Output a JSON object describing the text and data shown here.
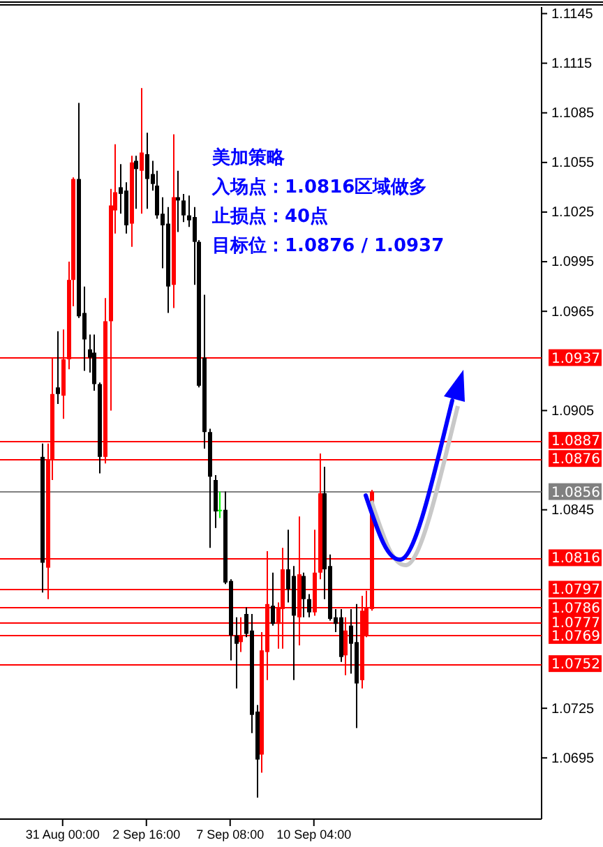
{
  "chart_data": {
    "type": "candlestick",
    "categories": [
      null,
      null,
      null,
      null,
      "31 Aug 00:00",
      null,
      null,
      null,
      null,
      null,
      null,
      null,
      null,
      null,
      null,
      null,
      null,
      null,
      null,
      null,
      "2 Sep 16:00",
      null,
      null,
      null,
      null,
      null,
      null,
      null,
      null,
      null,
      null,
      null,
      null,
      null,
      null,
      null,
      "7 Sep 08:00",
      null,
      null,
      null,
      null,
      null,
      null,
      null,
      null,
      null,
      null,
      null,
      null,
      null,
      null,
      null,
      "10 Sep 04:00",
      null,
      null,
      null,
      null,
      null,
      null,
      null,
      null,
      null,
      null,
      null,
      null,
      null,
      null,
      null,
      null,
      null,
      null,
      null,
      null,
      null,
      null,
      null,
      null,
      null,
      null,
      null,
      null,
      null,
      null,
      null,
      null,
      null,
      null,
      null,
      null,
      null,
      null,
      null,
      null,
      null,
      null,
      null
    ],
    "ohlc": [
      [
        1.0877,
        1.0885,
        1.0795,
        1.0813
      ],
      [
        1.081,
        1.0885,
        1.0791,
        1.0875
      ],
      [
        1.0875,
        1.0937,
        1.0863,
        1.0915
      ],
      [
        1.0919,
        1.0953,
        1.0909,
        1.0915
      ],
      [
        1.0914,
        1.0954,
        1.09,
        1.0936
      ],
      [
        1.0936,
        1.0995,
        1.093,
        1.0984
      ],
      [
        1.0984,
        1.1046,
        1.0968,
        1.1045
      ],
      [
        1.1045,
        1.1091,
        1.0961,
        1.0962
      ],
      [
        1.0964,
        1.098,
        1.0929,
        1.0948
      ],
      [
        1.0942,
        1.0951,
        1.0928,
        1.0937
      ],
      [
        1.094,
        1.0951,
        1.0917,
        1.0921
      ],
      [
        1.0921,
        1.0922,
        1.0867,
        1.0877
      ],
      [
        1.0877,
        1.0973,
        1.0873,
        1.0959
      ],
      [
        1.0959,
        1.1039,
        1.0905,
        1.1029
      ],
      [
        1.1026,
        1.1066,
        1.1012,
        1.1037
      ],
      [
        1.104,
        1.1054,
        1.1024,
        1.1036
      ],
      [
        1.1038,
        1.1043,
        1.1012,
        1.1017
      ],
      [
        1.1018,
        1.1059,
        1.1004,
        1.1055
      ],
      [
        1.1056,
        1.1059,
        1.1027,
        1.1051
      ],
      [
        1.105,
        1.11,
        1.1024,
        1.1061
      ],
      [
        1.106,
        1.1073,
        1.1027,
        1.1045
      ],
      [
        1.1048,
        1.1056,
        1.1038,
        1.1042
      ],
      [
        1.1041,
        1.105,
        1.1021,
        1.1023
      ],
      [
        1.1024,
        1.1034,
        1.0991,
        1.1017
      ],
      [
        1.1018,
        1.1028,
        1.0964,
        1.098
      ],
      [
        1.0981,
        1.1072,
        1.0967,
        1.1034
      ],
      [
        1.1034,
        1.105,
        1.1013,
        1.1032
      ],
      [
        1.1032,
        1.1036,
        1.1019,
        1.1023
      ],
      [
        1.1023,
        1.1035,
        1.1016,
        1.102
      ],
      [
        1.1022,
        1.1028,
        1.0981,
        1.1007
      ],
      [
        1.1007,
        1.1008,
        1.0919,
        1.092
      ],
      [
        1.0937,
        1.0975,
        1.0882,
        1.0892
      ],
      [
        1.0892,
        1.0894,
        1.0822,
        1.0865
      ],
      [
        1.0863,
        1.0866,
        1.0834,
        1.0844
      ],
      [
        1.0845,
        1.0856,
        1.084,
        1.0845
      ],
      [
        1.0845,
        1.0856,
        1.08,
        1.0801
      ],
      [
        1.0802,
        1.0803,
        1.0754,
        1.0769
      ],
      [
        1.0769,
        1.078,
        1.0737,
        1.0764
      ],
      [
        1.0765,
        1.078,
        1.0759,
        1.0769
      ],
      [
        1.0782,
        1.0786,
        1.0768,
        1.077
      ],
      [
        1.0772,
        1.0782,
        1.071,
        1.0721
      ],
      [
        1.0723,
        1.0727,
        1.0671,
        1.0694
      ],
      [
        1.0697,
        1.0771,
        1.0686,
        1.076
      ],
      [
        1.0759,
        1.082,
        1.0742,
        1.0788
      ],
      [
        1.0787,
        1.0807,
        1.0775,
        1.0776
      ],
      [
        1.0776,
        1.0789,
        1.0761,
        1.0786
      ],
      [
        1.0785,
        1.0822,
        1.0761,
        1.0809
      ],
      [
        1.0809,
        1.0833,
        1.0789,
        1.0797
      ],
      [
        1.0805,
        1.0811,
        1.0742,
        1.0781
      ],
      [
        1.078,
        1.0841,
        1.0763,
        1.0806
      ],
      [
        1.0805,
        1.0807,
        1.078,
        1.0791
      ],
      [
        1.0791,
        1.0794,
        1.078,
        1.0783
      ],
      [
        1.0783,
        1.0833,
        1.0781,
        1.0807
      ],
      [
        1.0807,
        1.0879,
        1.0803,
        1.0855
      ],
      [
        1.0855,
        1.0871,
        1.0791,
        1.0809
      ],
      [
        1.0811,
        1.0818,
        1.0778,
        1.0779
      ],
      [
        1.078,
        1.0785,
        1.0771,
        1.0776
      ],
      [
        1.078,
        1.0785,
        1.0753,
        1.0756
      ],
      [
        1.0757,
        1.078,
        1.0745,
        1.0772
      ],
      [
        1.0775,
        1.0785,
        1.0746,
        1.0764
      ],
      [
        1.0765,
        1.0788,
        1.0713,
        1.074
      ],
      [
        1.0742,
        1.0793,
        1.0737,
        1.0784
      ],
      [
        1.0769,
        1.0796,
        1.0768,
        1.0786
      ],
      [
        1.0785,
        1.0857,
        1.0784,
        1.0856
      ],
      null,
      null,
      null,
      null,
      null,
      null,
      null,
      null,
      null,
      null,
      null,
      null,
      null,
      null,
      null,
      null,
      null,
      null,
      null,
      null,
      null,
      null,
      null,
      null,
      null,
      null,
      null,
      null,
      null,
      null,
      null,
      null
    ],
    "colors": [
      "#000000",
      "#ff0000",
      "#ff0000",
      "#000000",
      "#ff0000",
      "#ff0000",
      "#ff0000",
      "#000000",
      "#000000",
      "#000000",
      "#000000",
      "#000000",
      "#ff0000",
      "#ff0000",
      "#ff0000",
      "#000000",
      "#000000",
      "#ff0000",
      "#000000",
      "#ff0000",
      "#000000",
      "#000000",
      "#000000",
      "#000000",
      "#000000",
      "#ff0000",
      "#000000",
      "#000000",
      "#000000",
      "#000000",
      "#000000",
      "#000000",
      "#000000",
      "#000000",
      "#00ff00",
      "#000000",
      "#000000",
      "#000000",
      "#ff0000",
      "#000000",
      "#000000",
      "#000000",
      "#ff0000",
      "#ff0000",
      "#000000",
      "#ff0000",
      "#ff0000",
      "#000000",
      "#000000",
      "#ff0000",
      "#000000",
      "#000000",
      "#ff0000",
      "#ff0000",
      "#000000",
      "#000000",
      "#000000",
      "#000000",
      "#ff0000",
      "#000000",
      "#000000",
      "#ff0000",
      "#ff0000",
      "#ff0000",
      null,
      null,
      null,
      null,
      null,
      null,
      null,
      null,
      null,
      null,
      null,
      null,
      null,
      null,
      null,
      null,
      null,
      null,
      null,
      null,
      null,
      null,
      null,
      null,
      null,
      null,
      null,
      null,
      null,
      null,
      null,
      null
    ],
    "ylim": [
      1.0658,
      1.1149
    ],
    "yticks": [
      1.1145,
      1.1115,
      1.1085,
      1.1055,
      1.1025,
      1.0995,
      1.0965,
      1.0905,
      1.0845,
      1.0725,
      1.0695
    ],
    "ref_lines": [
      {
        "axis": "y",
        "value": 1.0937,
        "label": "1.0937",
        "color": "#ff0000"
      },
      {
        "axis": "y",
        "value": 1.0887,
        "label": "1.0887",
        "color": "#ff0000"
      },
      {
        "axis": "y",
        "value": 1.0876,
        "label": "1.0876",
        "color": "#ff0000"
      },
      {
        "axis": "y",
        "value": 1.0856,
        "label": "1.0856",
        "color": "#808080"
      },
      {
        "axis": "y",
        "value": 1.0816,
        "label": "1.0816",
        "color": "#ff0000"
      },
      {
        "axis": "y",
        "value": 1.0797,
        "label": "1.0797",
        "color": "#ff0000"
      },
      {
        "axis": "y",
        "value": 1.0786,
        "label": "1.0786",
        "color": "#ff0000"
      },
      {
        "axis": "y",
        "value": 1.0777,
        "label": "1.0777",
        "color": "#ff0000"
      },
      {
        "axis": "y",
        "value": 1.0769,
        "label": "1.0769",
        "color": "#ff0000"
      },
      {
        "axis": "y",
        "value": 1.0752,
        "label": "1.0752",
        "color": "#ff0000"
      }
    ],
    "annotations": [
      "美加策略",
      "入场点：1.0816区域做多",
      "止损点：40点",
      "目标位：1.0876 / 1.0937"
    ],
    "grid": false
  }
}
